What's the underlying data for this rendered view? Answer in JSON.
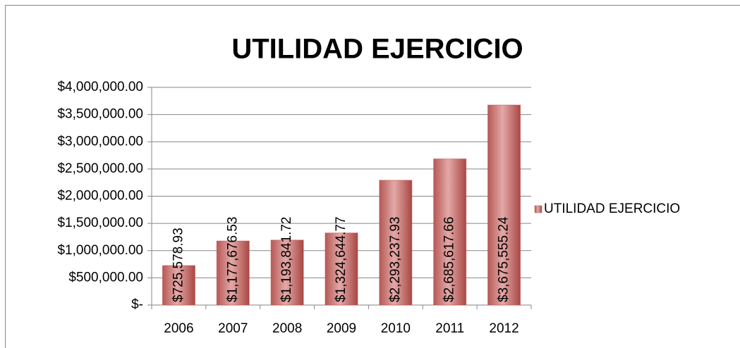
{
  "chart_data": {
    "type": "bar",
    "title": "UTILIDAD EJERCICIO",
    "categories": [
      "2006",
      "2007",
      "2008",
      "2009",
      "2010",
      "2011",
      "2012"
    ],
    "series": [
      {
        "name": "UTILIDAD EJERCICIO",
        "color": "#c0504d",
        "values": [
          725578.93,
          1177676.53,
          1193841.72,
          1324644.77,
          2293237.93,
          2685617.66,
          3675555.24
        ],
        "value_labels": [
          "$725,578.93",
          "$1,177,676.53",
          "$1,193,841.72",
          "$1,324,644.77",
          "$2,293,237.93",
          "$2,685,617.66",
          "$3,675,555.24"
        ]
      }
    ],
    "ylim": [
      0,
      4000000
    ],
    "yticks": [
      {
        "value": 0,
        "label": "$-"
      },
      {
        "value": 500000,
        "label": "$500,000.00"
      },
      {
        "value": 1000000,
        "label": "$1,000,000.00"
      },
      {
        "value": 1500000,
        "label": "$1,500,000.00"
      },
      {
        "value": 2000000,
        "label": "$2,000,000.00"
      },
      {
        "value": 2500000,
        "label": "$2,500,000.00"
      },
      {
        "value": 3000000,
        "label": "$3,000,000.00"
      },
      {
        "value": 3500000,
        "label": "$3,500,000.00"
      },
      {
        "value": 4000000,
        "label": "$4,000,000.00"
      }
    ],
    "grid": true,
    "legend": "right"
  }
}
